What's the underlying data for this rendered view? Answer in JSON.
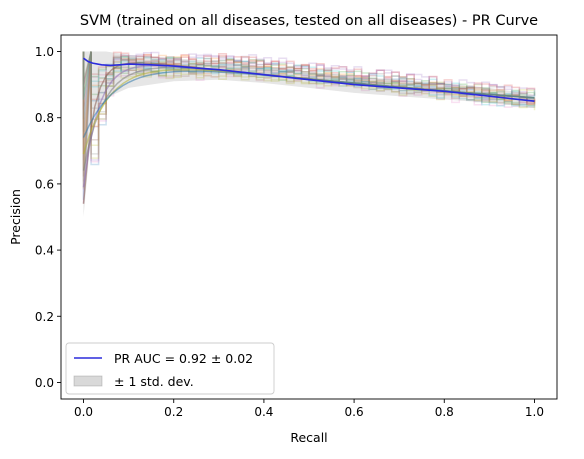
{
  "chart_data": {
    "type": "line",
    "title": "SVM (trained on all diseases, tested on all diseases) -  PR Curve",
    "xlabel": "Recall",
    "ylabel": "Precision",
    "xlim": [
      -0.05,
      1.05
    ],
    "ylim": [
      -0.05,
      1.05
    ],
    "xticks": [
      0.0,
      0.2,
      0.4,
      0.6,
      0.8,
      1.0
    ],
    "yticks": [
      0.0,
      0.2,
      0.4,
      0.6,
      0.8,
      1.0
    ],
    "xtick_labels": [
      "0.0",
      "0.2",
      "0.4",
      "0.6",
      "0.8",
      "1.0"
    ],
    "ytick_labels": [
      "0.0",
      "0.2",
      "0.4",
      "0.6",
      "0.8",
      "1.0"
    ],
    "grid": false,
    "legend_position": "lower-left",
    "mean_curve": {
      "label": "PR AUC = 0.92 ± 0.02",
      "color": "#2b2bdc",
      "x": [
        0.0,
        0.01,
        0.02,
        0.04,
        0.06,
        0.08,
        0.1,
        0.15,
        0.2,
        0.25,
        0.3,
        0.4,
        0.5,
        0.6,
        0.7,
        0.8,
        0.9,
        1.0
      ],
      "y": [
        0.98,
        0.97,
        0.965,
        0.96,
        0.958,
        0.96,
        0.962,
        0.96,
        0.956,
        0.95,
        0.945,
        0.93,
        0.915,
        0.9,
        0.89,
        0.88,
        0.865,
        0.85
      ]
    },
    "std_band": {
      "label": "± 1 std. dev.",
      "color": "#808080",
      "x": [
        0.0,
        0.02,
        0.05,
        0.1,
        0.2,
        0.3,
        0.4,
        0.5,
        0.6,
        0.7,
        0.8,
        0.9,
        1.0
      ],
      "lower": [
        0.5,
        0.8,
        0.86,
        0.89,
        0.91,
        0.915,
        0.905,
        0.89,
        0.875,
        0.865,
        0.855,
        0.845,
        0.83
      ],
      "upper": [
        1.0,
        1.0,
        1.0,
        0.99,
        0.98,
        0.97,
        0.955,
        0.94,
        0.925,
        0.915,
        0.905,
        0.89,
        0.87
      ]
    },
    "fold_curves": {
      "count": 20,
      "colors": [
        "#1f77b4",
        "#ff7f0e",
        "#2ca02c",
        "#d62728",
        "#9467bd",
        "#8c564b",
        "#e377c2",
        "#7f7f7f",
        "#bcbd22",
        "#17becf"
      ]
    }
  }
}
